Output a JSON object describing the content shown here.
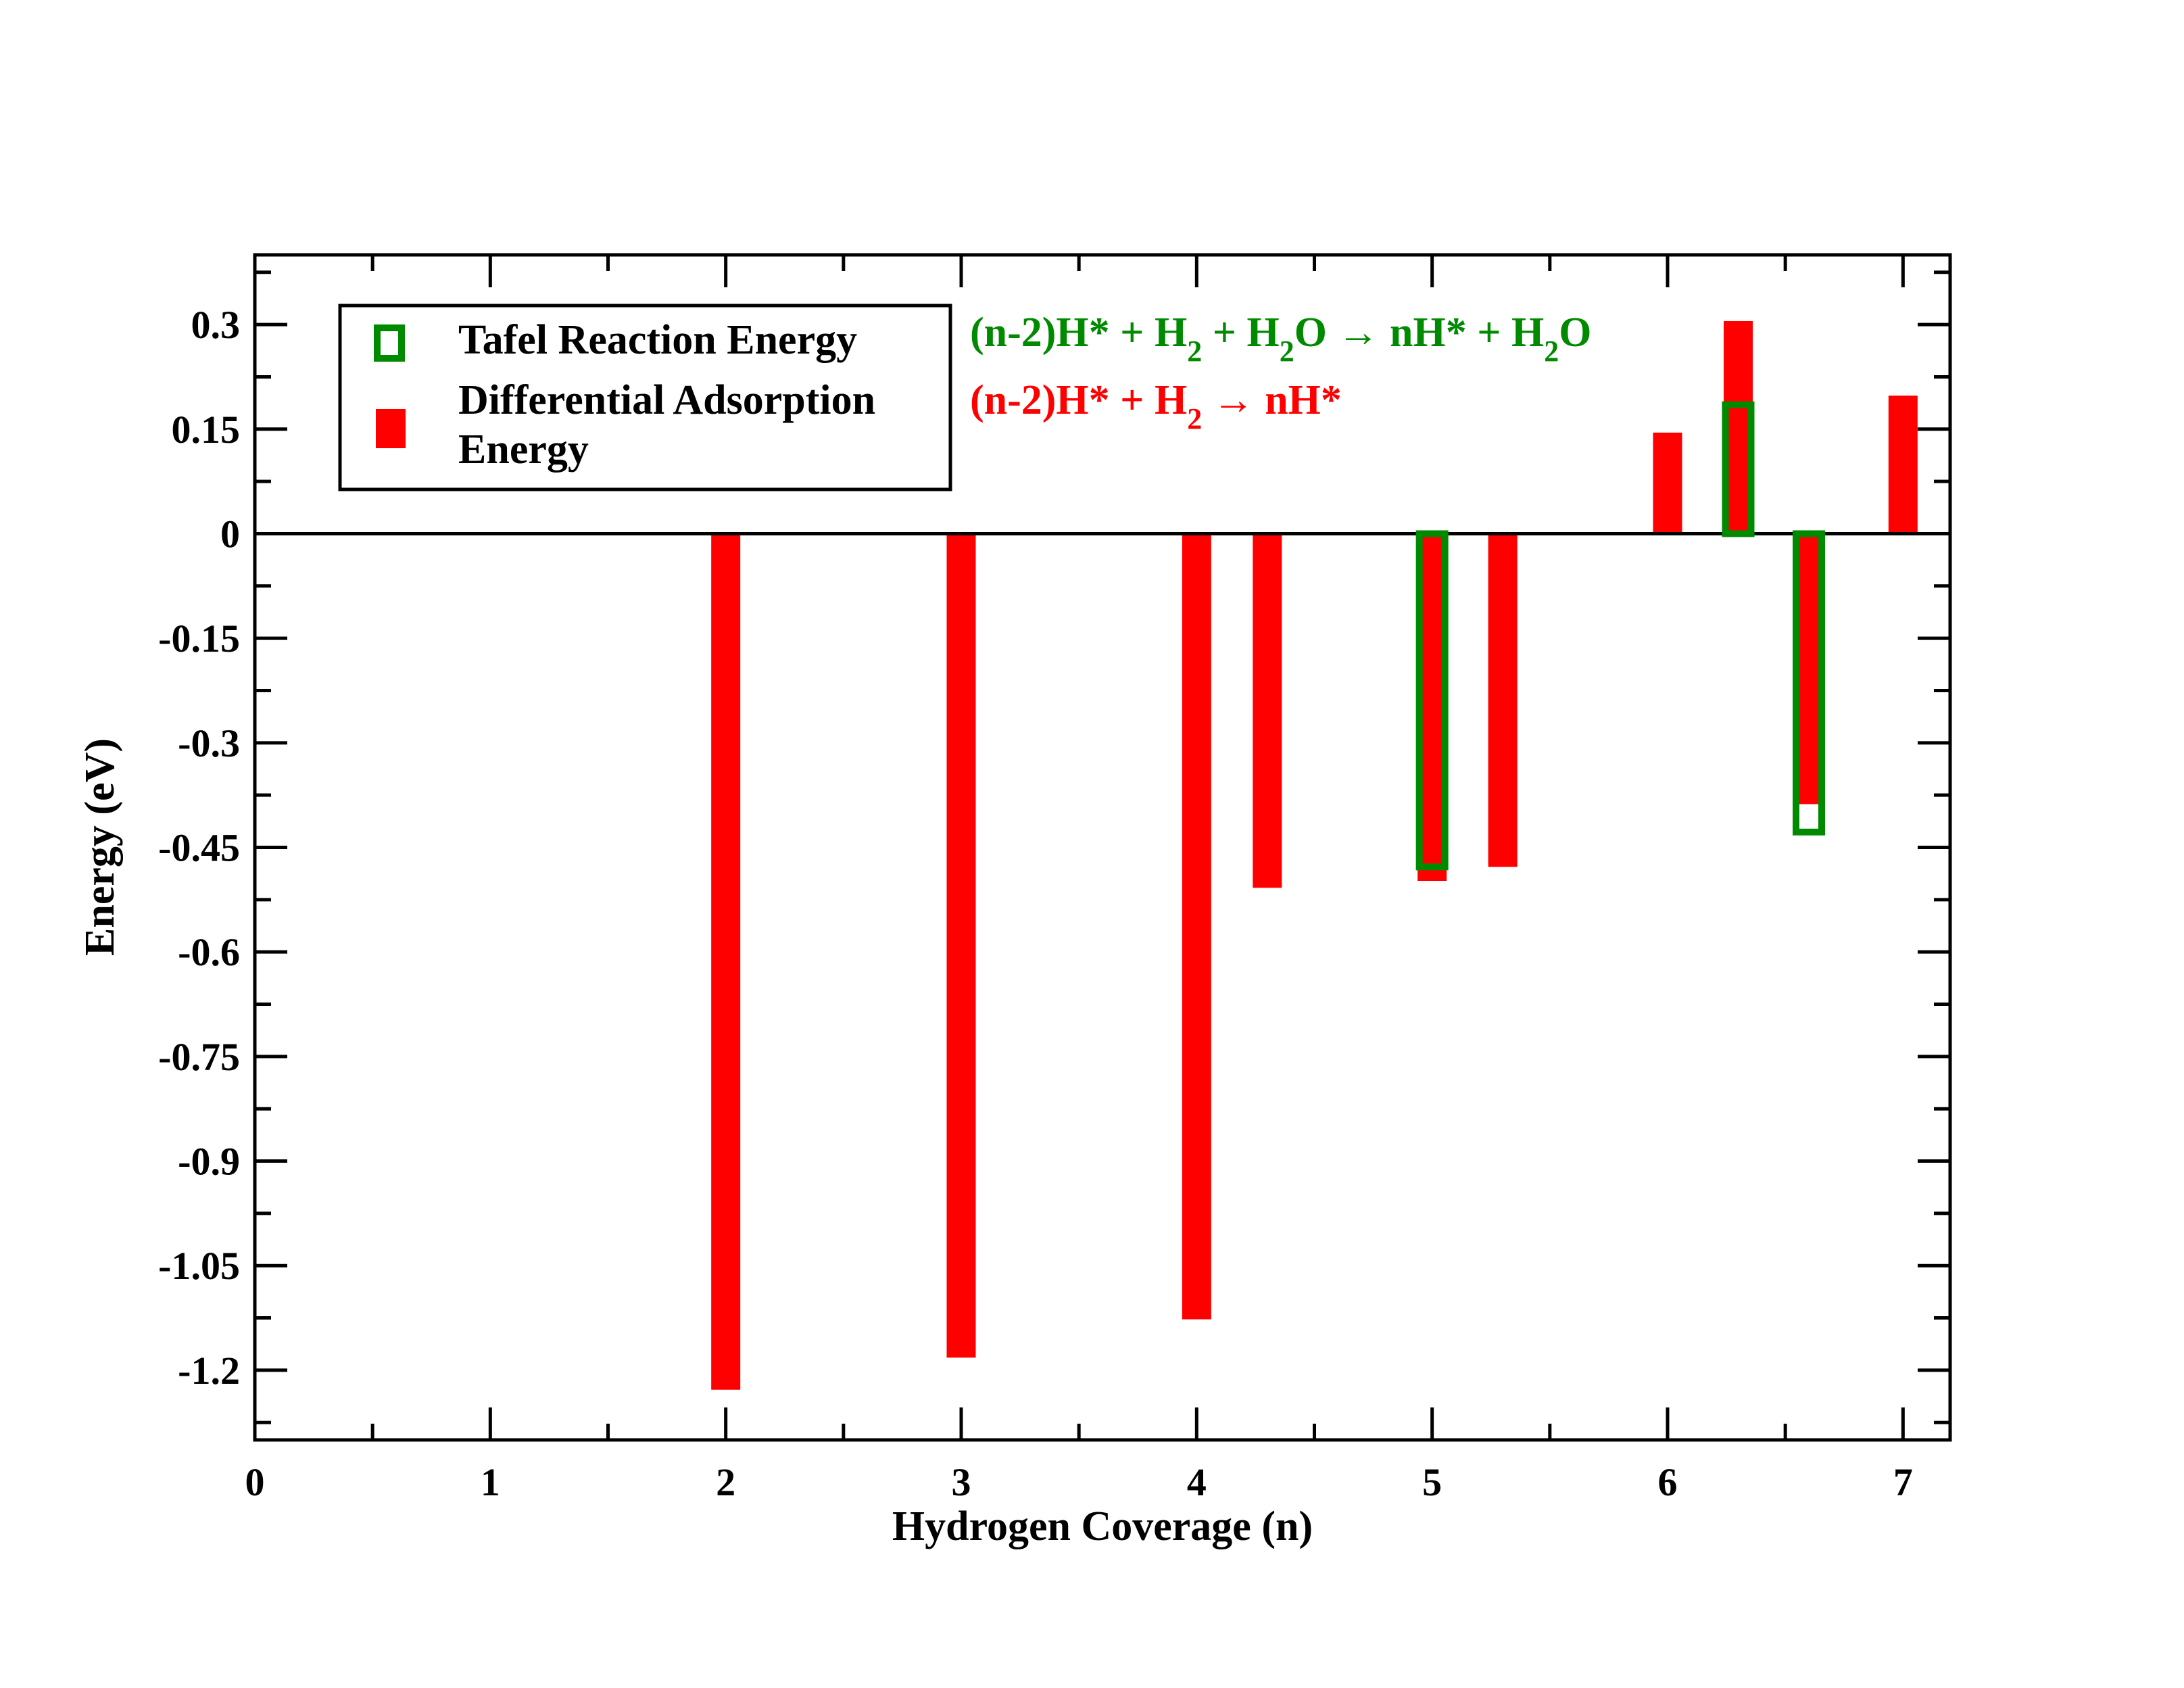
{
  "chart_data": {
    "type": "bar",
    "xlabel": "Hydrogen Coverage (n)",
    "ylabel": "Energy (eV)",
    "xlim": [
      0,
      7.2
    ],
    "ylim": [
      -1.3,
      0.4
    ],
    "x_ticks": [
      0,
      1,
      2,
      3,
      4,
      5,
      6,
      7
    ],
    "x_tick_labels": [
      "0",
      "1",
      "2",
      "3",
      "4",
      "5",
      "6",
      "7"
    ],
    "y_ticks": [
      0.3,
      0.15,
      0,
      -0.15,
      -0.3,
      -0.45,
      -0.6,
      -0.75,
      -0.9,
      -1.05,
      -1.2
    ],
    "y_tick_labels": [
      "0.3",
      "0.15",
      "0",
      "-0.15",
      "-0.3",
      "-0.45",
      "-0.6",
      "-0.75",
      "-0.9",
      "-1.05",
      "-1.2"
    ],
    "grid": false,
    "legend_position": "top-left",
    "series": [
      {
        "name": "Differential Adsorption Energy",
        "color": "#ff0000",
        "style": "filled",
        "points": [
          {
            "x": 2.0,
            "y": -1.228
          },
          {
            "x": 3.0,
            "y": -1.182
          },
          {
            "x": 4.0,
            "y": -1.127
          },
          {
            "x": 4.3,
            "y": -0.508
          },
          {
            "x": 5.0,
            "y": -0.498
          },
          {
            "x": 5.3,
            "y": -0.478
          },
          {
            "x": 6.0,
            "y": 0.145
          },
          {
            "x": 6.3,
            "y": 0.305
          },
          {
            "x": 6.6,
            "y": -0.388
          },
          {
            "x": 7.0,
            "y": 0.198
          }
        ]
      },
      {
        "name": "Tafel Reaction Energy",
        "color": "#008a00",
        "style": "outline",
        "points": [
          {
            "x": 5.0,
            "y": -0.478
          },
          {
            "x": 6.3,
            "y": 0.185
          },
          {
            "x": 6.6,
            "y": -0.428
          }
        ]
      }
    ],
    "annotations": [
      {
        "color": "#008a00",
        "parts": [
          {
            "text": "(n-2)H* + H",
            "sub": false
          },
          {
            "text": "2",
            "sub": true
          },
          {
            "text": " + H",
            "sub": false
          },
          {
            "text": "2",
            "sub": true
          },
          {
            "text": "O → nH* + H",
            "sub": false
          },
          {
            "text": "2",
            "sub": true
          },
          {
            "text": "O",
            "sub": false
          }
        ]
      },
      {
        "color": "#ff0000",
        "parts": [
          {
            "text": "(n-2)H* + H",
            "sub": false
          },
          {
            "text": "2",
            "sub": true
          },
          {
            "text": " → nH*",
            "sub": false
          }
        ]
      }
    ]
  },
  "legend": {
    "entries": [
      {
        "lines": [
          "Tafel Reaction Energy"
        ],
        "style": "outline",
        "color": "#008a00"
      },
      {
        "lines": [
          "Differential Adsorption",
          "Energy"
        ],
        "style": "filled",
        "color": "#ff0000"
      }
    ]
  }
}
